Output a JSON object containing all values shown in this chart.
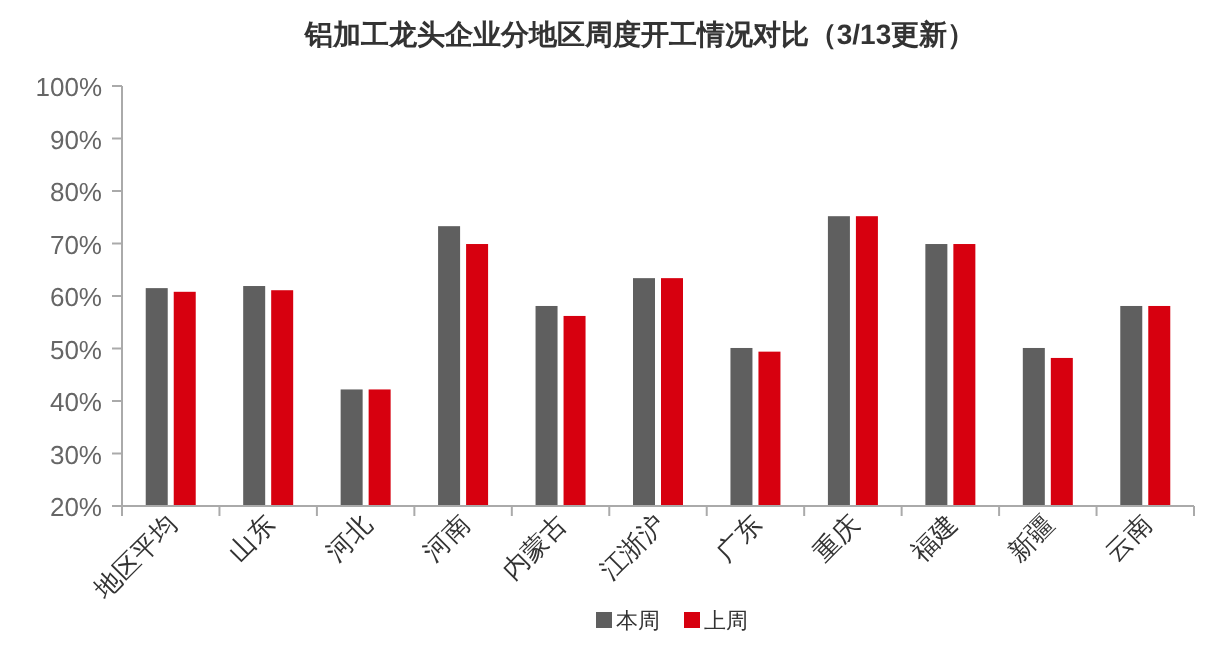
{
  "chart_data": {
    "type": "bar",
    "title": "铝加工龙头企业分地区周度开工情况对比（3/13更新）",
    "categories": [
      "地区平均",
      "山东",
      "河北",
      "河南",
      "内蒙古",
      "江浙沪",
      "广东",
      "重庆",
      "福建",
      "新疆",
      "云南"
    ],
    "series": [
      {
        "name": "本周",
        "color": "#5f5f5f",
        "values": [
          61.5,
          61.9,
          42.2,
          73.3,
          58.1,
          63.4,
          50.1,
          75.2,
          69.9,
          50.1,
          58.1
        ]
      },
      {
        "name": "上周",
        "color": "#d7000f",
        "values": [
          60.8,
          61.1,
          42.2,
          69.9,
          56.2,
          63.4,
          49.4,
          75.2,
          69.9,
          48.2,
          58.1
        ]
      }
    ],
    "ylim": [
      20,
      100
    ],
    "yticks": [
      {
        "value": 20,
        "label": "20%"
      },
      {
        "value": 30,
        "label": "30%"
      },
      {
        "value": 40,
        "label": "40%"
      },
      {
        "value": 50,
        "label": "50%"
      },
      {
        "value": 60,
        "label": "60%"
      },
      {
        "value": 70,
        "label": "70%"
      },
      {
        "value": 80,
        "label": "80%"
      },
      {
        "value": 90,
        "label": "90%"
      },
      {
        "value": 100,
        "label": "100%"
      }
    ],
    "grid": false,
    "legend": "bottom"
  }
}
